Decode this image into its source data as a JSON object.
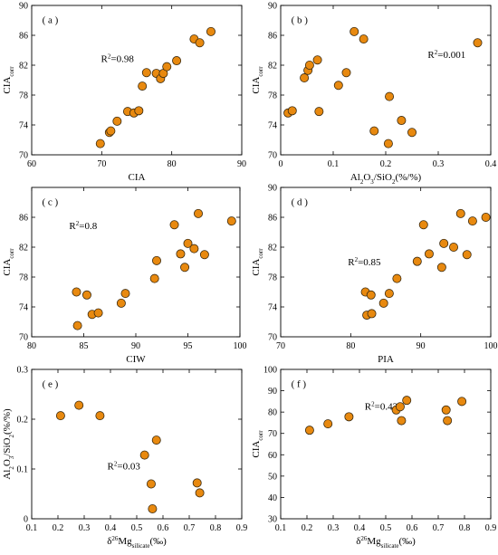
{
  "style": {
    "marker_color": "#E8890F",
    "marker_edge": "#3a2a10"
  },
  "chart_data": [
    {
      "type": "scatter",
      "panel": "(a)",
      "xlabel": "CIA",
      "ylabel": "CIAcorr",
      "xlim": [
        60,
        90
      ],
      "ylim": [
        70,
        90
      ],
      "xticks": [
        60,
        70,
        80,
        90
      ],
      "yticks": [
        70,
        74,
        78,
        82,
        86,
        90
      ],
      "annotation": "R²=0.98",
      "x": [
        69.8,
        71.1,
        71.3,
        72.2,
        73.7,
        74.6,
        75.3,
        75.8,
        76.4,
        77.8,
        78.4,
        78.8,
        79.3,
        80.7,
        83.2,
        84.0,
        85.6
      ],
      "y": [
        71.5,
        73.0,
        73.2,
        74.5,
        75.8,
        75.6,
        75.9,
        79.2,
        81.0,
        80.9,
        80.2,
        80.9,
        81.8,
        82.6,
        85.5,
        85.0,
        86.5
      ]
    },
    {
      "type": "scatter",
      "panel": "(b)",
      "xlabel": "Al2O3/SiO2(%/%)",
      "ylabel": "CIAcorr",
      "xlim": [
        0,
        0.4
      ],
      "ylim": [
        70,
        90
      ],
      "xticks": [
        0,
        0.1,
        0.2,
        0.3,
        0.4
      ],
      "yticks": [
        70,
        74,
        78,
        82,
        86,
        90
      ],
      "annotation": "R²=0.001",
      "x": [
        0.014,
        0.022,
        0.045,
        0.052,
        0.055,
        0.07,
        0.073,
        0.11,
        0.125,
        0.14,
        0.158,
        0.178,
        0.205,
        0.207,
        0.23,
        0.25,
        0.375
      ],
      "y": [
        75.6,
        75.9,
        80.3,
        81.3,
        82.0,
        82.7,
        75.8,
        79.3,
        81.0,
        86.5,
        85.5,
        73.2,
        71.5,
        77.8,
        74.6,
        73.0,
        85.0
      ]
    },
    {
      "type": "scatter",
      "panel": "(c)",
      "xlabel": "CIW",
      "ylabel": "CIAcorr",
      "xlim": [
        80,
        100
      ],
      "ylim": [
        70,
        90
      ],
      "xticks": [
        80,
        85,
        90,
        95,
        100
      ],
      "yticks": [
        70,
        74,
        78,
        82,
        86
      ],
      "annotation": "R²=0.8",
      "x": [
        84.3,
        84.4,
        85.3,
        85.8,
        86.4,
        88.6,
        89.0,
        91.8,
        92.0,
        93.7,
        94.3,
        94.7,
        95.0,
        95.6,
        96.0,
        96.6,
        99.2
      ],
      "y": [
        76.0,
        71.5,
        75.6,
        73.0,
        73.2,
        74.5,
        75.8,
        77.8,
        80.2,
        85.0,
        81.1,
        79.3,
        82.5,
        81.8,
        86.5,
        81.0,
        85.5
      ]
    },
    {
      "type": "scatter",
      "panel": "(d)",
      "xlabel": "PIA",
      "ylabel": "CIAcorr",
      "xlim": [
        70,
        100
      ],
      "ylim": [
        70,
        90
      ],
      "xticks": [
        70,
        80,
        90,
        100
      ],
      "yticks": [
        70,
        74,
        78,
        82,
        86,
        90
      ],
      "annotation": "R²=0.85",
      "x": [
        82.1,
        82.3,
        82.9,
        83.0,
        84.7,
        85.5,
        86.6,
        89.5,
        90.4,
        91.2,
        93.0,
        93.3,
        94.7,
        95.7,
        96.6,
        97.4,
        99.3
      ],
      "y": [
        76.0,
        72.9,
        75.6,
        73.1,
        74.5,
        75.8,
        77.8,
        80.1,
        85.0,
        81.1,
        79.3,
        82.5,
        82.0,
        86.5,
        81.0,
        85.5,
        86.0
      ]
    },
    {
      "type": "scatter",
      "panel": "(e)",
      "xlabel": "δ26Mgsilicate(‰)",
      "ylabel": "Al2O3/SiO2(%/%)",
      "xlim": [
        0.1,
        0.9
      ],
      "ylim": [
        0,
        0.3
      ],
      "xticks": [
        0.1,
        0.2,
        0.3,
        0.4,
        0.5,
        0.6,
        0.7,
        0.8,
        0.9
      ],
      "yticks": [
        0,
        0.1,
        0.2,
        0.3
      ],
      "annotation": "R²=0.03",
      "x": [
        0.21,
        0.28,
        0.36,
        0.53,
        0.555,
        0.56,
        0.575,
        0.73,
        0.74
      ],
      "y": [
        0.207,
        0.228,
        0.207,
        0.128,
        0.07,
        0.02,
        0.158,
        0.072,
        0.052
      ]
    },
    {
      "type": "scatter",
      "panel": "(f)",
      "xlabel": "δ26Mgsilicate(‰)",
      "ylabel": "CIAcorr",
      "xlim": [
        0.1,
        0.9
      ],
      "ylim": [
        30,
        100
      ],
      "xticks": [
        0.1,
        0.2,
        0.3,
        0.4,
        0.5,
        0.6,
        0.7,
        0.8,
        0.9
      ],
      "yticks": [
        30,
        40,
        50,
        60,
        70,
        80,
        90,
        100
      ],
      "annotation": "R²=0.43",
      "x": [
        0.21,
        0.28,
        0.36,
        0.54,
        0.555,
        0.56,
        0.58,
        0.73,
        0.735,
        0.79
      ],
      "y": [
        71.5,
        74.5,
        77.8,
        81.0,
        82.5,
        76.0,
        85.5,
        81.0,
        76.0,
        85.0
      ]
    }
  ]
}
